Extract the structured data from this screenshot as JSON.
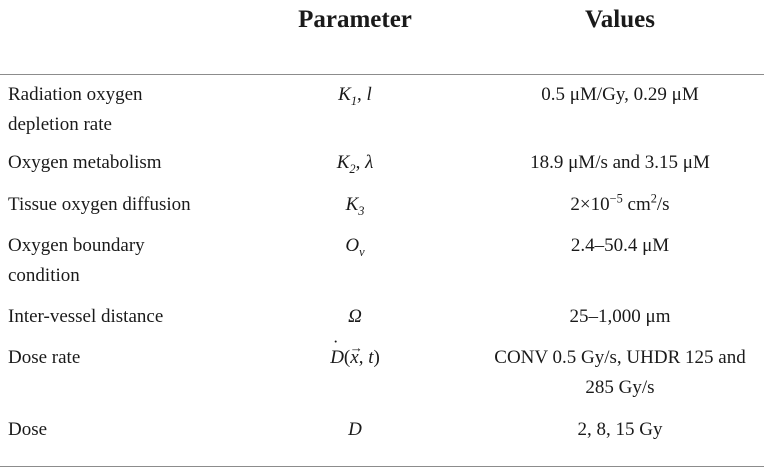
{
  "table": {
    "headers": {
      "parameter": "Parameter",
      "values": "Values"
    },
    "rows": [
      {
        "name_line1": "Radiation oxygen",
        "name_line2": "depletion rate",
        "param_sym1": "K",
        "param_sub1": "1",
        "param_sep": ", ",
        "param_sym2": "l",
        "value_line1": "0.5 μM/Gy, 0.29 μM"
      },
      {
        "name_line1": "Oxygen metabolism",
        "param_sym1": "K",
        "param_sub1": "2",
        "param_sep": ", ",
        "param_sym2": "λ",
        "value_line1": "18.9 μM/s and 3.15 μM"
      },
      {
        "name_line1": "Tissue oxygen diffusion",
        "param_sym1": "K",
        "param_sub1": "3",
        "value_prefix": "2×10",
        "value_exp": "−5",
        "value_mid": " cm",
        "value_exp2": "2",
        "value_suffix": "/s"
      },
      {
        "name_line1": "Oxygen boundary",
        "name_line2": "condition",
        "param_sym1": "O",
        "param_sub1": "ν",
        "value_line1": "2.4–50.4 μM"
      },
      {
        "name_line1": "Inter-vessel distance",
        "param_sym1": "Ω",
        "value_line1": "25–1,000 μm"
      },
      {
        "name_line1": "Dose rate",
        "param_d": "D",
        "param_open": "(",
        "param_x": "x",
        "param_comma": ", ",
        "param_t": "t",
        "param_close": ")",
        "value_line1": "CONV 0.5 Gy/s, UHDR 125 and",
        "value_line2": "285 Gy/s"
      },
      {
        "name_line1": "Dose",
        "param_sym1": "D",
        "value_line1": "2, 8, 15 Gy"
      }
    ]
  }
}
